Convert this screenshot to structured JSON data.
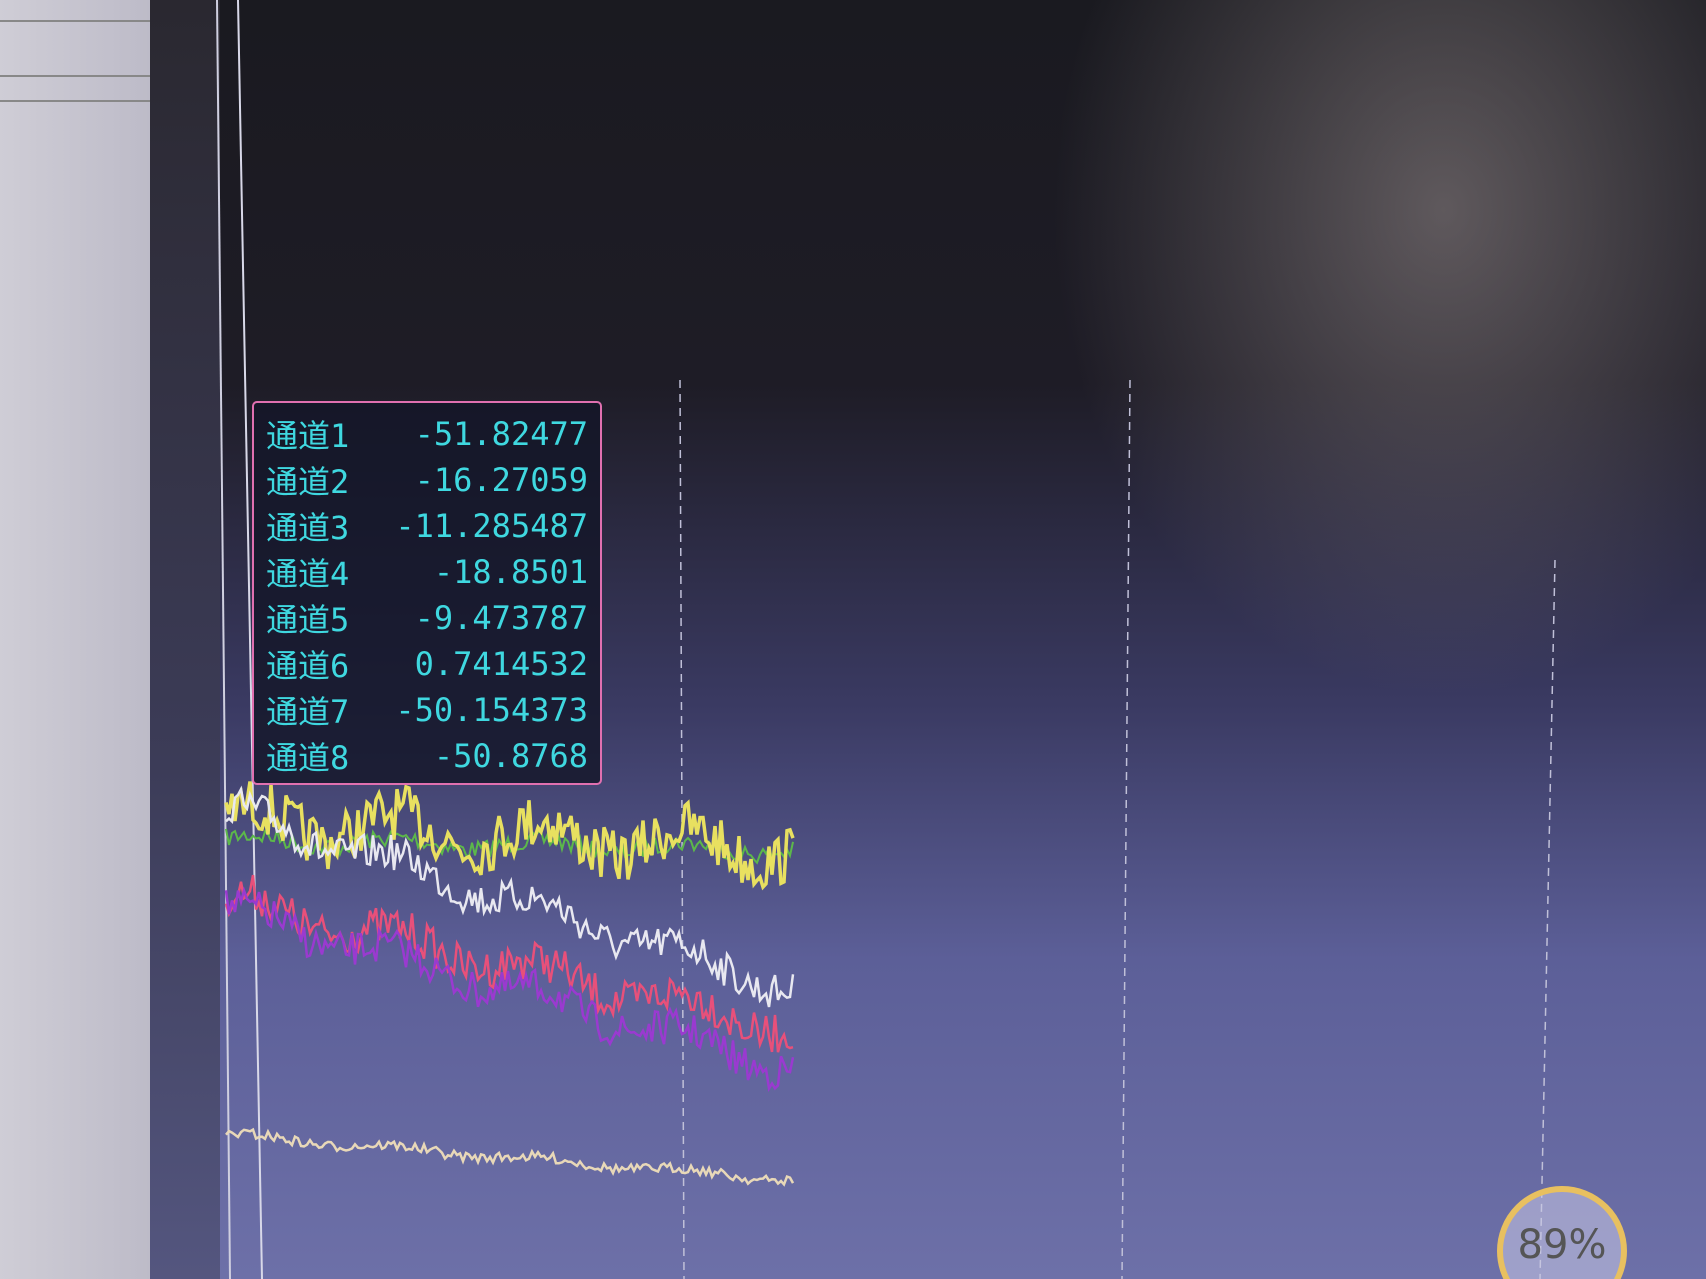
{
  "tooltip": {
    "rows": [
      {
        "label": "通道1",
        "value": -51.82477
      },
      {
        "label": "通道2",
        "value": -16.27059
      },
      {
        "label": "通道3",
        "value": -11.285487
      },
      {
        "label": "通道4",
        "value": -18.8501
      },
      {
        "label": "通道5",
        "value": -9.473787
      },
      {
        "label": "通道6",
        "value": 0.7414532
      },
      {
        "label": "通道7",
        "value": -50.154373
      },
      {
        "label": "通道8",
        "value": -50.8768
      }
    ]
  },
  "badge": "89%"
}
